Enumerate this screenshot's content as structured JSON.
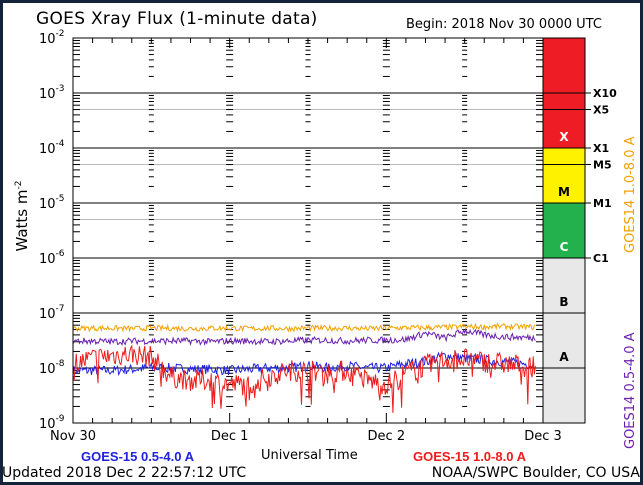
{
  "header": {
    "title": "GOES Xray Flux (1-minute data)",
    "begin": "Begin:  2018 Nov 30 0000 UTC"
  },
  "footer": {
    "updated": "Updated 2018 Dec  2 22:57:12 UTC",
    "credit": "NOAA/SWPC Boulder, CO USA"
  },
  "colors": {
    "goes15_short": "#1e22e0",
    "goes15_long": "#ee1c1c",
    "goes14_long": "#f5a000",
    "goes14_short": "#6a1fb0",
    "class_x": "#ee1c24",
    "class_m": "#fff200",
    "class_c": "#22b14c",
    "class_ab": "#e8e8e8"
  },
  "chart_data": {
    "type": "line",
    "title": "GOES Xray Flux (1-minute data)",
    "xlabel": "Universal Time",
    "ylabel": "Watts m^-2",
    "yscale": "log",
    "ylim": [
      1e-09,
      0.01
    ],
    "xlim_hours": [
      0,
      72
    ],
    "x_tick_labels": [
      {
        "hour": 0,
        "label": "Nov 30"
      },
      {
        "hour": 24,
        "label": "Dec 1"
      },
      {
        "hour": 48,
        "label": "Dec 2"
      },
      {
        "hour": 72,
        "label": "Dec 3"
      }
    ],
    "y_tick_labels": [
      {
        "exp": -2,
        "label": "10",
        "sup": "-2"
      },
      {
        "exp": -3,
        "label": "10",
        "sup": "-3"
      },
      {
        "exp": -4,
        "label": "10",
        "sup": "-4"
      },
      {
        "exp": -5,
        "label": "10",
        "sup": "-5"
      },
      {
        "exp": -6,
        "label": "10",
        "sup": "-6"
      },
      {
        "exp": -7,
        "label": "10",
        "sup": "-7"
      },
      {
        "exp": -8,
        "label": "10",
        "sup": "-8"
      },
      {
        "exp": -9,
        "label": "10",
        "sup": "-9"
      }
    ],
    "flare_classes": [
      {
        "label": "X",
        "from": 0.0001,
        "to": 0.01,
        "color_key": "class_x"
      },
      {
        "label": "M",
        "from": 1e-05,
        "to": 0.0001,
        "color_key": "class_m"
      },
      {
        "label": "C",
        "from": 1e-06,
        "to": 1e-05,
        "color_key": "class_c"
      },
      {
        "label": "B",
        "from": 1e-07,
        "to": 1e-06,
        "color_key": "class_ab"
      },
      {
        "label": "A",
        "from": 1e-08,
        "to": 1e-07,
        "color_key": "class_ab"
      }
    ],
    "class_thresholds": [
      {
        "label": "X10",
        "value": 0.001
      },
      {
        "label": "X5",
        "value": 0.0005
      },
      {
        "label": "X1",
        "value": 0.0001
      },
      {
        "label": "M5",
        "value": 5e-05
      },
      {
        "label": "M1",
        "value": 1e-05
      },
      {
        "label": "C1",
        "value": 1e-06
      }
    ],
    "hours": [
      0,
      3,
      6,
      9,
      12,
      15,
      18,
      21,
      24,
      27,
      30,
      33,
      36,
      39,
      42,
      45,
      48,
      51,
      54,
      57,
      60,
      63,
      66,
      69,
      71
    ],
    "series": [
      {
        "name": "GOES14 1.0-8.0 A",
        "color_key": "goes14_long",
        "label_position": "right-axis",
        "values": [
          5.2e-08,
          5.3e-08,
          5.3e-08,
          5.2e-08,
          5.3e-08,
          5.3e-08,
          5.2e-08,
          5.3e-08,
          5.3e-08,
          5.2e-08,
          5.3e-08,
          5.2e-08,
          5.3e-08,
          5.3e-08,
          5.3e-08,
          5.2e-08,
          5.3e-08,
          5.4e-08,
          5.4e-08,
          5.5e-08,
          5.6e-08,
          5.6e-08,
          5.7e-08,
          5.6e-08,
          5.5e-08
        ]
      },
      {
        "name": "GOES14 0.5-4.0 A",
        "color_key": "goes14_short",
        "label_position": "right-axis",
        "values": [
          3.1e-08,
          3.1e-08,
          3e-08,
          3.1e-08,
          3.1e-08,
          3.1e-08,
          3.1e-08,
          3e-08,
          3.1e-08,
          3.1e-08,
          3e-08,
          3.1e-08,
          3.2e-08,
          3.2e-08,
          3.1e-08,
          3.2e-08,
          3.2e-08,
          3.3e-08,
          4.3e-08,
          3.5e-08,
          4.8e-08,
          4e-08,
          3.7e-08,
          3.6e-08,
          3.5e-08
        ]
      },
      {
        "name": "GOES-15 0.5-4.0 A",
        "color_key": "goes15_short",
        "label_position": "bottom-left",
        "values": [
          9e-09,
          9e-09,
          9e-09,
          9.5e-09,
          1e-08,
          1e-08,
          9.5e-09,
          9.5e-09,
          9e-09,
          9.5e-09,
          1e-08,
          1e-08,
          1.1e-08,
          1e-08,
          1.1e-08,
          1e-08,
          1e-08,
          1.2e-08,
          1.3e-08,
          1.7e-08,
          1.5e-08,
          1.4e-08,
          1.3e-08,
          1.2e-08,
          1.1e-08
        ]
      },
      {
        "name": "GOES-15 1.0-8.0 A",
        "color_key": "goes15_long",
        "label_position": "bottom-right",
        "values": [
          1.2e-08,
          1.5e-08,
          1.7e-08,
          1.8e-08,
          1.6e-08,
          7e-09,
          6e-09,
          6e-09,
          5e-09,
          5e-09,
          7e-09,
          9e-09,
          9e-09,
          8e-09,
          9e-09,
          6e-09,
          5e-09,
          8e-09,
          1.1e-08,
          1.4e-08,
          1.5e-08,
          1.3e-08,
          1.2e-08,
          1.1e-08,
          1e-08
        ]
      }
    ]
  }
}
